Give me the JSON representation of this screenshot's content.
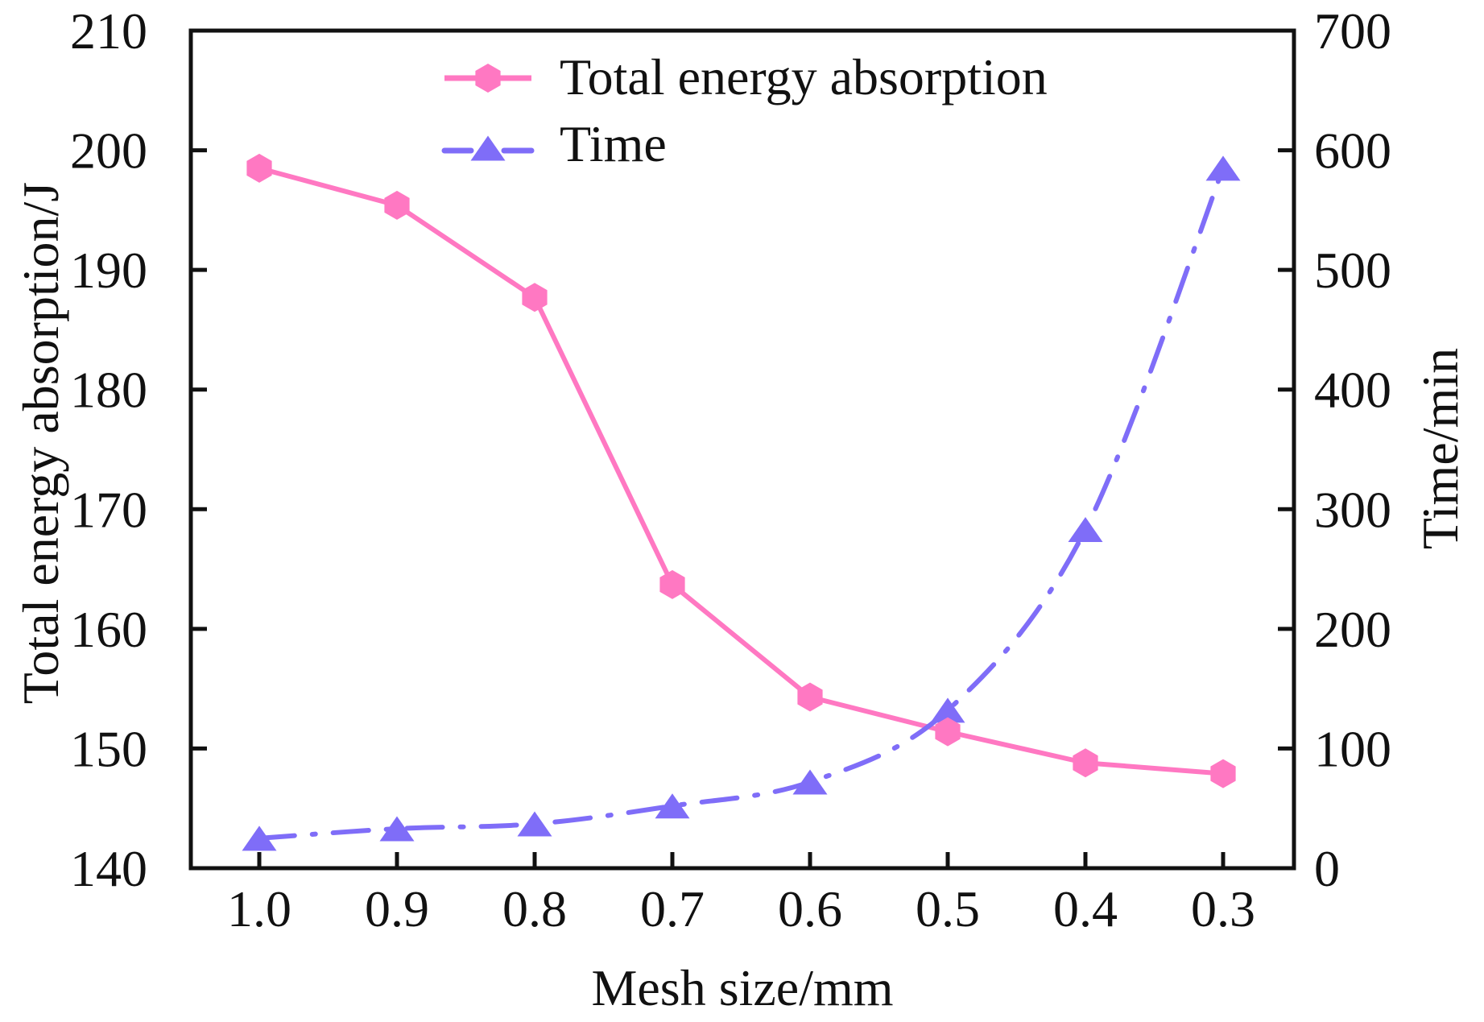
{
  "chart_data": {
    "type": "line",
    "title": "",
    "xlabel": "Mesh size/mm",
    "ylabel": "Total energy absorption/J",
    "y2label": "Time/min",
    "categories": [
      "1.0",
      "0.9",
      "0.8",
      "0.7",
      "0.6",
      "0.5",
      "0.4",
      "0.3"
    ],
    "x": [
      1.0,
      0.9,
      0.8,
      0.7,
      0.6,
      0.5,
      0.4,
      0.3
    ],
    "xlim": [
      1.05,
      0.25
    ],
    "ylim": [
      140,
      210
    ],
    "y2lim": [
      0,
      700
    ],
    "yticks": [
      140,
      150,
      160,
      170,
      180,
      190,
      200,
      210
    ],
    "y2ticks": [
      0,
      100,
      200,
      300,
      400,
      500,
      600,
      700
    ],
    "grid": false,
    "legend_position": "top-center",
    "series": [
      {
        "name": "Total energy absorption",
        "axis": "left",
        "color": "#ff78c2",
        "marker": "hexagon",
        "line_style": "solid",
        "values": [
          198.5,
          195.4,
          187.7,
          163.7,
          154.3,
          151.4,
          148.8,
          147.9
        ]
      },
      {
        "name": "Time",
        "axis": "right",
        "color": "#7f6df8",
        "marker": "triangle",
        "line_style": "dash-dot",
        "smooth": true,
        "values": [
          25,
          33,
          37,
          52,
          72,
          132,
          283,
          585
        ]
      }
    ]
  }
}
